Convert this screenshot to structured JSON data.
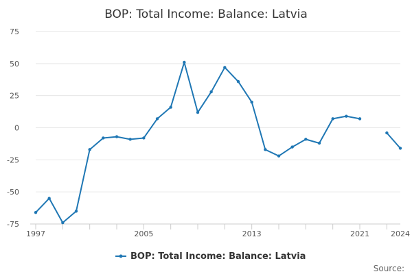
{
  "chart_data": {
    "type": "line",
    "title": "BOP: Total Income: Balance: Latvia",
    "xlabel": "",
    "ylabel": "",
    "x_range": [
      1997,
      2024
    ],
    "ylim": [
      -75,
      75
    ],
    "y_ticks": [
      75,
      50,
      25,
      0,
      -25,
      -50,
      -75
    ],
    "y_tick_labels": [
      "75",
      "50",
      "25",
      "0",
      "-25",
      "-50",
      "-75"
    ],
    "x_ticks": [
      1997,
      2005,
      2013,
      2021,
      2024
    ],
    "x_tick_labels": [
      "1997",
      "2005",
      "2013",
      "2021",
      "2024"
    ],
    "grid": true,
    "legend_position": "bottom",
    "series": [
      {
        "name": "BOP: Total Income: Balance: Latvia",
        "color": "#1f77b4",
        "x": [
          1997,
          1998,
          1999,
          2000,
          2001,
          2002,
          2003,
          2004,
          2005,
          2006,
          2007,
          2008,
          2009,
          2010,
          2011,
          2012,
          2013,
          2014,
          2015,
          2016,
          2017,
          2018,
          2019,
          2020,
          2021,
          2022,
          2023,
          2024
        ],
        "values": [
          -66,
          -55,
          -74,
          -65,
          -17,
          -8,
          -7,
          -9,
          -8,
          7,
          16,
          51,
          12,
          28,
          47,
          36,
          20,
          -17,
          -22,
          -15,
          -9,
          -12,
          7,
          9,
          7,
          null,
          -4,
          -16
        ]
      }
    ]
  },
  "legend": {
    "label": "BOP: Total Income: Balance: Latvia"
  },
  "footer": {
    "source": "Source:"
  }
}
